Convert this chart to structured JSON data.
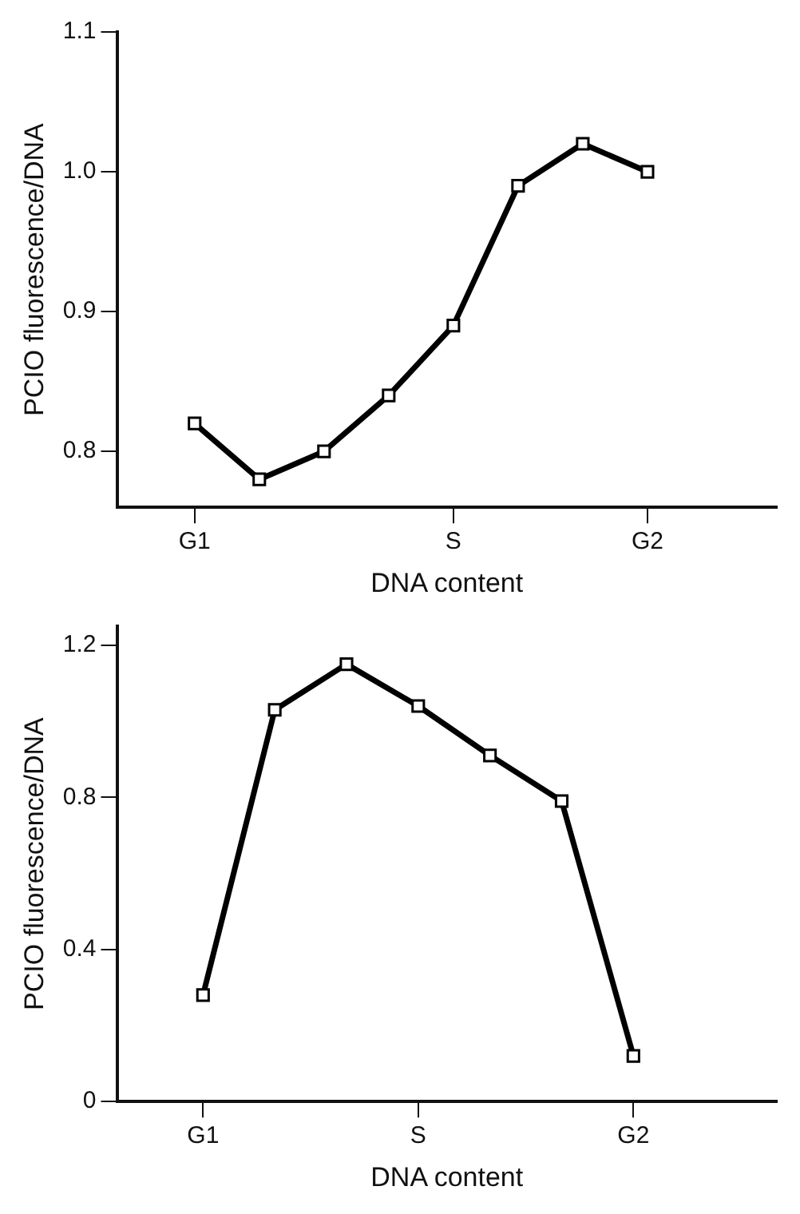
{
  "chart_data": [
    {
      "type": "line",
      "xlabel": "DNA content",
      "ylabel": "PCIO fluorescence/DNA",
      "categories": [
        "G1",
        null,
        null,
        null,
        "S",
        null,
        null,
        "G2"
      ],
      "series": [
        {
          "color": "#000000",
          "values": [
            0.82,
            0.78,
            0.8,
            0.84,
            0.89,
            0.99,
            1.02,
            1.0
          ]
        }
      ],
      "ylim": [
        0.76,
        1.1
      ],
      "yticks": [
        0.8,
        0.9,
        {
          "value": 1,
          "label": "1.0"
        },
        1.1
      ],
      "grid": false,
      "legend": false,
      "marker": "square",
      "line_style": "solid"
    },
    {
      "type": "line",
      "xlabel": "DNA content",
      "ylabel": "PCIO fluorescence/DNA",
      "categories": [
        "G1",
        null,
        null,
        "S",
        null,
        null,
        "G2"
      ],
      "series": [
        {
          "color": "#000000",
          "values": [
            0.28,
            1.03,
            1.15,
            1.04,
            0.91,
            0.79,
            0.12
          ]
        }
      ],
      "ylim": [
        0,
        1.25
      ],
      "yticks": [
        0,
        0.4,
        0.8,
        1.2
      ],
      "grid": false,
      "legend": false,
      "marker": "square",
      "line_style": "solid"
    }
  ]
}
